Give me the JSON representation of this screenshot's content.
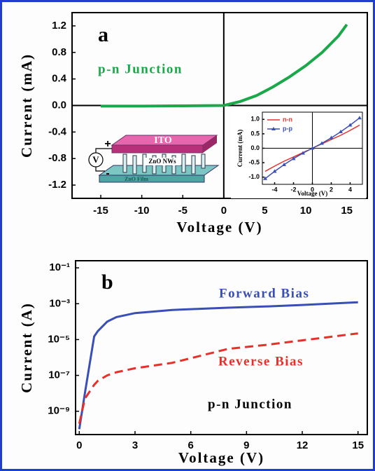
{
  "chart_data": [
    {
      "type": "line",
      "panel_label": "a",
      "x_label": "Voltage (V)",
      "y_label": "Current (mA)",
      "x": [
        -15,
        -10,
        -5,
        0,
        2,
        4,
        6,
        8,
        10,
        12,
        14,
        15
      ],
      "series": [
        {
          "name": "p-n Junction",
          "color": "#1aa84a",
          "values": [
            -0.01,
            -0.01,
            -0.005,
            0,
            0.06,
            0.15,
            0.28,
            0.43,
            0.6,
            0.8,
            1.05,
            1.22
          ]
        }
      ],
      "xlim": [
        -18.5,
        17.5
      ],
      "ylim": [
        -1.4,
        1.4
      ],
      "xticks": [
        -15,
        -10,
        -5,
        0,
        5,
        10,
        15
      ],
      "yticks": [
        1.2,
        0.8,
        0.4,
        {
          "value": 0,
          "label": "0.0"
        },
        -0.4,
        -0.8,
        -1.2
      ],
      "zero_lines": true,
      "grid": false
    },
    {
      "type": "line",
      "x_label": "Voltage (V)",
      "y_label": "Current (mA)",
      "x": [
        -5,
        -4,
        -3,
        -2,
        -1,
        0,
        1,
        2,
        3,
        4,
        5
      ],
      "series": [
        {
          "name": "n-n",
          "color": "#e8302a",
          "values": [
            -0.8,
            -0.62,
            -0.45,
            -0.3,
            -0.15,
            0,
            0.15,
            0.3,
            0.45,
            0.62,
            0.8
          ]
        },
        {
          "name": "p-p",
          "color": "#3a4fb5",
          "marker": "triangle",
          "values": [
            -1.05,
            -0.8,
            -0.57,
            -0.36,
            -0.17,
            0,
            0.17,
            0.36,
            0.57,
            0.8,
            1.05
          ]
        }
      ],
      "xlim": [
        -5.3,
        5.3
      ],
      "ylim": [
        -1.25,
        1.25
      ],
      "xticks": [
        -4,
        -2,
        0,
        2,
        4
      ],
      "yticks": [
        {
          "value": 1,
          "label": "1.0"
        },
        0.5,
        {
          "value": 0,
          "label": "0.0"
        },
        -0.5,
        {
          "value": -1,
          "label": "-1.0"
        }
      ],
      "zero_lines": true,
      "legend": "upper left",
      "grid": false
    },
    {
      "type": "line",
      "panel_label": "b",
      "x_label": "Voltage (V)",
      "y_label": "Current (A)",
      "x": [
        0,
        0.3,
        0.8,
        1,
        1.5,
        2,
        3,
        5,
        8,
        10,
        12,
        15
      ],
      "series": [
        {
          "name": "Forward Bias",
          "color": "#3a4fb5",
          "dash": false,
          "values": [
            1e-10,
            1e-08,
            1.5e-05,
            3e-05,
            0.0001,
            0.00018,
            0.0003,
            0.00045,
            0.0006,
            0.0007,
            0.00085,
            0.0012
          ]
        },
        {
          "name": "Reverse Bias",
          "color": "#e8302a",
          "dash": true,
          "values": [
            2e-10,
            5e-09,
            3e-08,
            5e-08,
            1e-07,
            1.5e-07,
            2.5e-07,
            5e-07,
            3e-06,
            5e-06,
            9e-06,
            2.2e-05
          ]
        }
      ],
      "annotations": [
        "p-n Junction"
      ],
      "xlim": [
        -0.2,
        15.5
      ],
      "ylim": [
        5e-11,
        0.25
      ],
      "log_y": true,
      "xticks": [
        0,
        3,
        6,
        9,
        12,
        15
      ],
      "yticks": [
        {
          "value": 0.1,
          "label": "10⁻¹"
        },
        {
          "value": 0.001,
          "label": "10⁻³"
        },
        {
          "value": 1e-05,
          "label": "10⁻⁵"
        },
        {
          "value": 1e-07,
          "label": "10⁻⁷"
        },
        {
          "value": 1e-09,
          "label": "10⁻⁹"
        }
      ],
      "grid": false
    }
  ],
  "schematic": {
    "top_layer": "ITO",
    "nanowires": "ZnO NWs",
    "film": "ZnO Film",
    "source": "V",
    "plus": "+",
    "minus": "-"
  }
}
